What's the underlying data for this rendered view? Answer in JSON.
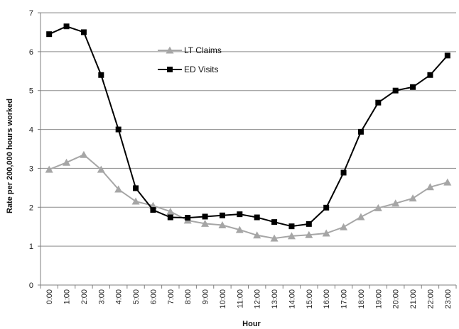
{
  "chart_data": {
    "type": "line",
    "title": "",
    "xlabel": "Hour",
    "ylabel": "Rate per 200,000 hours worked",
    "ylim": [
      0,
      7
    ],
    "yticks": [
      0,
      1,
      2,
      3,
      4,
      5,
      6,
      7
    ],
    "grid": "horizontal",
    "legend_position": "upper-center",
    "categories": [
      "0:00",
      "1:00",
      "2:00",
      "3:00",
      "4:00",
      "5:00",
      "6:00",
      "7:00",
      "8:00",
      "9:00",
      "10:00",
      "11:00",
      "12:00",
      "13:00",
      "14:00",
      "15:00",
      "16:00",
      "17:00",
      "18:00",
      "19:00",
      "20:00",
      "21:00",
      "22:00",
      "23:00"
    ],
    "series": [
      {
        "name": "LT Claims",
        "color": "#a6a6a6",
        "marker": "triangle",
        "values": [
          2.97,
          3.15,
          3.35,
          2.97,
          2.46,
          2.15,
          2.04,
          1.89,
          1.66,
          1.58,
          1.54,
          1.42,
          1.28,
          1.2,
          1.26,
          1.29,
          1.33,
          1.49,
          1.75,
          1.98,
          2.1,
          2.23,
          2.52,
          2.64
        ]
      },
      {
        "name": "ED Visits",
        "color": "#000000",
        "marker": "square",
        "values": [
          6.45,
          6.65,
          6.5,
          5.4,
          4.0,
          2.49,
          1.93,
          1.74,
          1.73,
          1.76,
          1.79,
          1.82,
          1.74,
          1.62,
          1.51,
          1.57,
          1.99,
          2.89,
          3.94,
          4.69,
          5.0,
          5.09,
          5.4,
          5.9
        ]
      }
    ]
  }
}
